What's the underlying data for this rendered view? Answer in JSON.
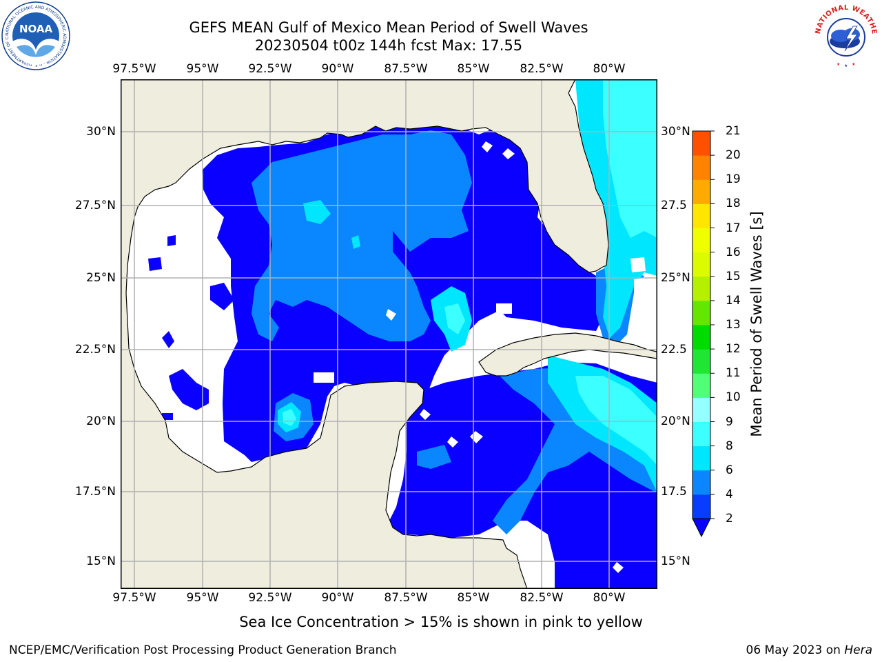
{
  "header": {
    "title_line1": "GEFS MEAN Gulf of Mexico Mean Period of Swell Waves",
    "title_line2": "20230504 t00z 144h fcst   Max: 17.55"
  },
  "logos": {
    "left": {
      "name": "noaa-logo",
      "text": "NOAA",
      "ring_text": "NATIONAL OCEANIC AND ATMOSPHERIC ADMINISTRATION · U.S. DEPARTMENT OF COMMERCE"
    },
    "right": {
      "name": "national-weather-service-logo",
      "ring_text": "NATIONAL WEATHER SERVICE"
    }
  },
  "map": {
    "longitude_ticks": [
      "97.5°W",
      "95°W",
      "92.5°W",
      "90°W",
      "87.5°W",
      "85°W",
      "82.5°W",
      "80°W"
    ],
    "latitude_ticks": [
      "30°N",
      "27.5°N",
      "25°N",
      "22.5°N",
      "20°N",
      "17.5°N",
      "15°N"
    ],
    "right_latitude_ticks": [
      "30°N",
      "27.5",
      "25°N",
      "22.5",
      "20°N",
      "17.5",
      "15°N"
    ],
    "lon_range": [
      -98.0,
      -79.0
    ],
    "lat_range": [
      14.0,
      31.5
    ],
    "colors": {
      "land": "#efedde",
      "no_data": "#ffffff",
      "coast": "#000000",
      "grid": "#b0b0b0"
    },
    "field_description": "swell period contours over Gulf of Mexico"
  },
  "colorbar": {
    "title": "Mean Period of Swell Waves [s]",
    "levels": [
      "2",
      "4",
      "6",
      "8",
      "9",
      "10",
      "11",
      "12",
      "13",
      "14",
      "15",
      "16",
      "17",
      "18",
      "19",
      "20",
      "21"
    ],
    "colors": [
      "#0a3cff",
      "#0a87ff",
      "#00e6ff",
      "#3cffff",
      "#96ffff",
      "#50ff78",
      "#1ee632",
      "#00dc00",
      "#64e600",
      "#b4f000",
      "#dcfa00",
      "#f0ff00",
      "#ffe600",
      "#ffaa00",
      "#ff8200",
      "#ff5000",
      "#ff1e00",
      "#ff0000"
    ],
    "extend_color": "#0a00ff"
  },
  "notes": {
    "sea_ice": "Sea Ice Concentration > 15% is shown in pink to yellow",
    "credit": "NCEP/EMC/Verification Post Processing Product Generation Branch",
    "date": "06 May 2023 on ",
    "machine": "Hera"
  }
}
